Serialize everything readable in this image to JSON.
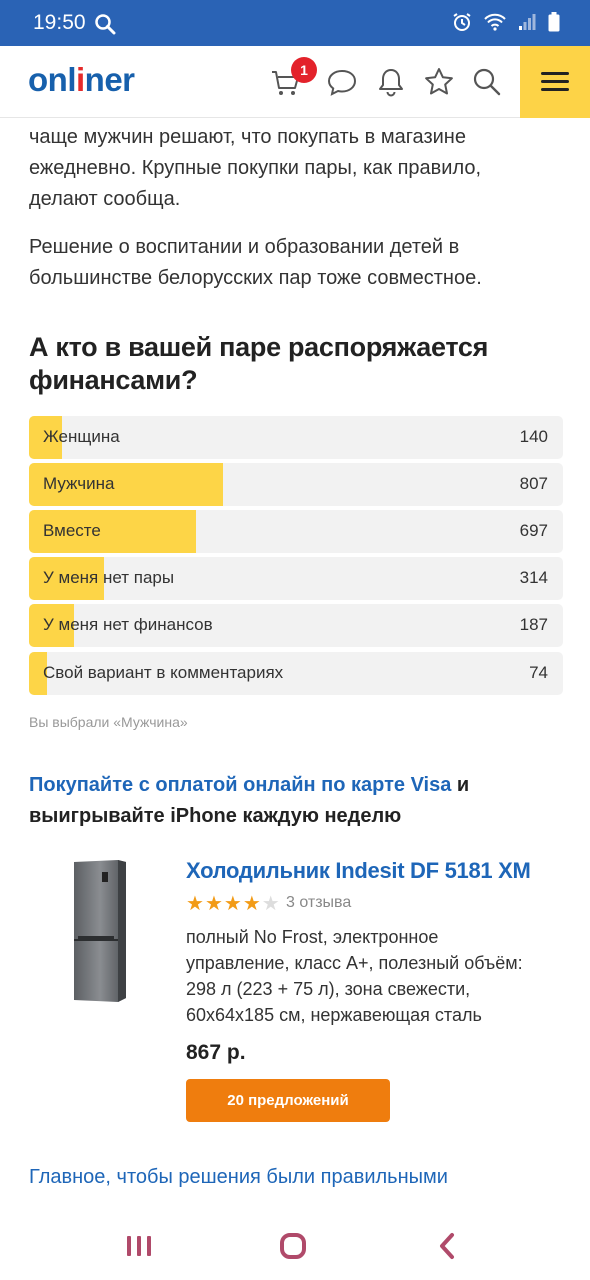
{
  "status_bar": {
    "time": "19:50"
  },
  "header": {
    "logo_part1": "onl",
    "logo_highlight": "i",
    "logo_part2": "ner",
    "cart_badge": "1"
  },
  "article": {
    "para1_lines": [
      "чаще мужчин решают, что покупать в магазине",
      "ежедневно. Крупные покупки пары, как правило,",
      "делают сообща."
    ],
    "para2_lines": [
      "Решение о воспитании и образовании детей в",
      "большинстве белорусских пар тоже совместное."
    ],
    "poll_title_lines": [
      "А кто в вашей паре распоряжается",
      "финансами?"
    ]
  },
  "poll": {
    "options": [
      {
        "label": "Женщина",
        "count": "140",
        "share": 0.062
      },
      {
        "label": "Мужчина",
        "count": "807",
        "share": 0.363
      },
      {
        "label": "Вместе",
        "count": "697",
        "share": 0.313
      },
      {
        "label": "У меня нет пары",
        "count": "314",
        "share": 0.141
      },
      {
        "label": "У меня нет финансов",
        "count": "187",
        "share": 0.084
      },
      {
        "label": "Свой вариант в комментариях",
        "count": "74",
        "share": 0.033
      }
    ],
    "note": "Вы выбрали «Мужчина»"
  },
  "promo": {
    "link_text": "Покупайте с оплатой онлайн по карте Visa",
    "rest_line1": " и",
    "line2": "выигрывайте iPhone каждую неделю"
  },
  "product": {
    "title": "Холодильник Indesit DF 5181 XM",
    "rating": 4,
    "rating_max": 5,
    "reviews": "3 отзыва",
    "desc_lines": [
      "полный No Frost, электронное",
      "управление, класс А+, полезный объём:",
      "298 л (223 + 75 л), зона свежести,",
      "60x64x185 см, нержавеющая сталь"
    ],
    "price": "867 р.",
    "offers_button": "20 предложений"
  },
  "bottom_link": "Главное, чтобы решения были правильными",
  "colors": {
    "brand_blue": "#1760ac",
    "accent_yellow": "#fdd347",
    "offers_orange": "#ef7d0e",
    "status_bar": "#2a63b5"
  }
}
